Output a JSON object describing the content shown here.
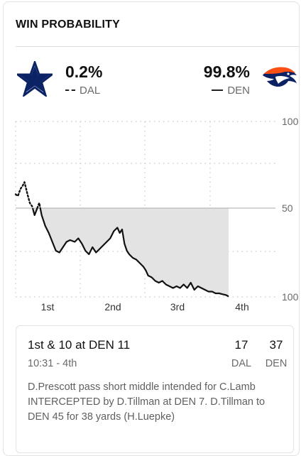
{
  "header": {
    "title": "WIN PROBABILITY"
  },
  "teams": {
    "away": {
      "abbr": "DAL",
      "pct": "0.2%",
      "logo": "cowboys-star-icon",
      "color": "#0b2265"
    },
    "home": {
      "abbr": "DEN",
      "pct": "99.8%",
      "logo": "broncos-horse-icon",
      "color": "#fb4f14"
    }
  },
  "chart_data": {
    "type": "line",
    "y_tick_labels": [
      "100",
      "50",
      "100"
    ],
    "x_tick_labels": [
      "1st",
      "2nd",
      "3rd",
      "4th"
    ],
    "baseline": 50,
    "series": [
      {
        "line_style": "dotted above 50 / solid below 50",
        "team": "DAL (above 50) vs DEN (below 50)",
        "points": [
          [
            0.0,
            58
          ],
          [
            0.2,
            57
          ],
          [
            0.4,
            61
          ],
          [
            0.6,
            63
          ],
          [
            0.75,
            65
          ],
          [
            1.0,
            58
          ],
          [
            1.2,
            53
          ],
          [
            1.4,
            51
          ],
          [
            1.6,
            46
          ],
          [
            2.0,
            53
          ],
          [
            2.2,
            46
          ],
          [
            2.5,
            40
          ],
          [
            2.8,
            36
          ],
          [
            3.1,
            31
          ],
          [
            3.4,
            26
          ],
          [
            3.7,
            25
          ],
          [
            4.0,
            28
          ],
          [
            4.3,
            31
          ],
          [
            4.6,
            32
          ],
          [
            5.0,
            31
          ],
          [
            5.3,
            33
          ],
          [
            5.6,
            30
          ],
          [
            5.9,
            26
          ],
          [
            6.2,
            24
          ],
          [
            6.5,
            28
          ],
          [
            6.8,
            25
          ],
          [
            7.1,
            27
          ],
          [
            7.4,
            29
          ],
          [
            7.7,
            31
          ],
          [
            8.0,
            33
          ],
          [
            8.3,
            37
          ],
          [
            8.6,
            39
          ],
          [
            8.8,
            36
          ],
          [
            9.0,
            38
          ],
          [
            9.2,
            30
          ],
          [
            9.4,
            26
          ],
          [
            9.6,
            24
          ],
          [
            9.9,
            22
          ],
          [
            10.2,
            21
          ],
          [
            10.5,
            19
          ],
          [
            10.8,
            17
          ],
          [
            11.0,
            15
          ],
          [
            11.2,
            12
          ],
          [
            11.5,
            11
          ],
          [
            11.8,
            9
          ],
          [
            12.1,
            8
          ],
          [
            12.4,
            9
          ],
          [
            12.7,
            7
          ],
          [
            13.0,
            6
          ],
          [
            13.3,
            5
          ],
          [
            13.6,
            6
          ],
          [
            13.9,
            5
          ],
          [
            14.2,
            7
          ],
          [
            14.5,
            5
          ],
          [
            14.8,
            8
          ],
          [
            15.1,
            4
          ],
          [
            15.4,
            6
          ],
          [
            15.7,
            5
          ],
          [
            16.0,
            4
          ],
          [
            16.3,
            3
          ],
          [
            16.6,
            3
          ],
          [
            16.9,
            2
          ],
          [
            17.2,
            2
          ],
          [
            17.5,
            1.5
          ],
          [
            17.8,
            1
          ],
          [
            18.0,
            0.2
          ]
        ]
      }
    ]
  },
  "play": {
    "down_distance": "1st & 10 at DEN 11",
    "clock": "10:31 - 4th",
    "away_score": "17",
    "home_score": "37",
    "away_abbr": "DAL",
    "home_abbr": "DEN",
    "description": "D.Prescott pass short middle intended for C.Lamb INTERCEPTED by D.Tillman at DEN 7. D.Tillman to DEN 45 for 38 yards (H.Luepke)"
  }
}
